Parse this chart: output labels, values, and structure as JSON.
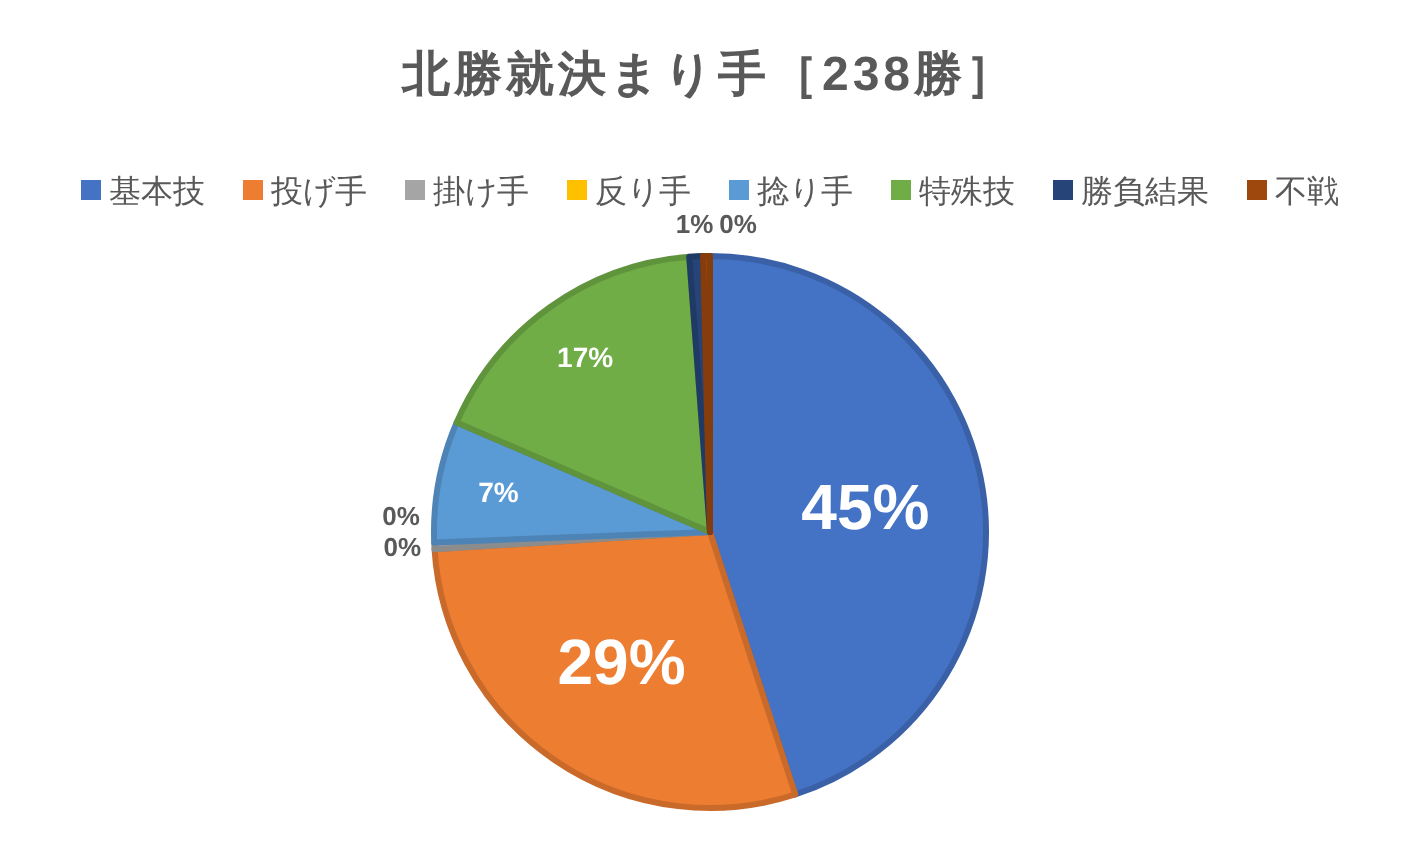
{
  "chart_data": {
    "type": "pie",
    "title": "北勝就決まり手［238勝］",
    "categories": [
      "基本技",
      "投げ手",
      "掛け手",
      "反り手",
      "捻り手",
      "特殊技",
      "勝負結果",
      "不戦"
    ],
    "values": [
      45.0,
      29.0,
      0.4,
      0,
      7.1,
      17.3,
      0.8,
      0.4
    ],
    "colors": [
      "#4472c4",
      "#ed7d31",
      "#a5a5a5",
      "#ffc000",
      "#5b9bd5",
      "#70ad47",
      "#264478",
      "#9e480e"
    ],
    "value_labels": [
      "45%",
      "29%",
      "0%",
      "0%",
      "7%",
      "17%",
      "1%",
      "0%"
    ],
    "legend": "top"
  }
}
